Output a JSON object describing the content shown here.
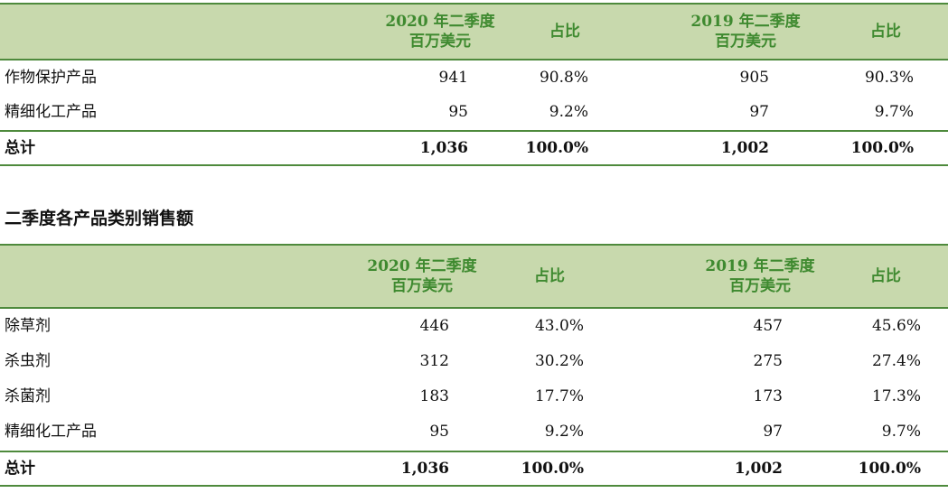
{
  "table1": {
    "header": {
      "col1_line1": "2020 年二季度",
      "col1_line2": "百万美元",
      "col2": "占比",
      "col3_line1": "2019 年二季度",
      "col3_line2": "百万美元",
      "col4": "占比"
    },
    "rows": [
      {
        "label": "作物保护产品",
        "v2020": "941",
        "p2020": "90.8%",
        "v2019": "905",
        "p2019": "90.3%"
      },
      {
        "label": "精细化工产品",
        "v2020": "95",
        "p2020": "9.2%",
        "v2019": "97",
        "p2019": "9.7%"
      }
    ],
    "total": {
      "label": "总计",
      "v2020": "1,036",
      "p2020": "100.0%",
      "v2019": "1,002",
      "p2019": "100.0%"
    }
  },
  "section_title": "二季度各产品类别销售额",
  "table2": {
    "header": {
      "col1_line1": "2020 年二季度",
      "col1_line2": "百万美元",
      "col2": "占比",
      "col3_line1": "2019 年二季度",
      "col3_line2": "百万美元",
      "col4": "占比"
    },
    "rows": [
      {
        "label": "除草剂",
        "v2020": "446",
        "p2020": "43.0%",
        "v2019": "457",
        "p2019": "45.6%"
      },
      {
        "label": "杀虫剂",
        "v2020": "312",
        "p2020": "30.2%",
        "v2019": "275",
        "p2019": "27.4%"
      },
      {
        "label": "杀菌剂",
        "v2020": "183",
        "p2020": "17.7%",
        "v2019": "173",
        "p2019": "17.3%"
      },
      {
        "label": "精细化工产品",
        "v2020": "95",
        "p2020": "9.2%",
        "v2019": "97",
        "p2019": "9.7%"
      }
    ],
    "total": {
      "label": "总计",
      "v2020": "1,036",
      "p2020": "100.0%",
      "v2019": "1,002",
      "p2019": "100.0%"
    }
  }
}
